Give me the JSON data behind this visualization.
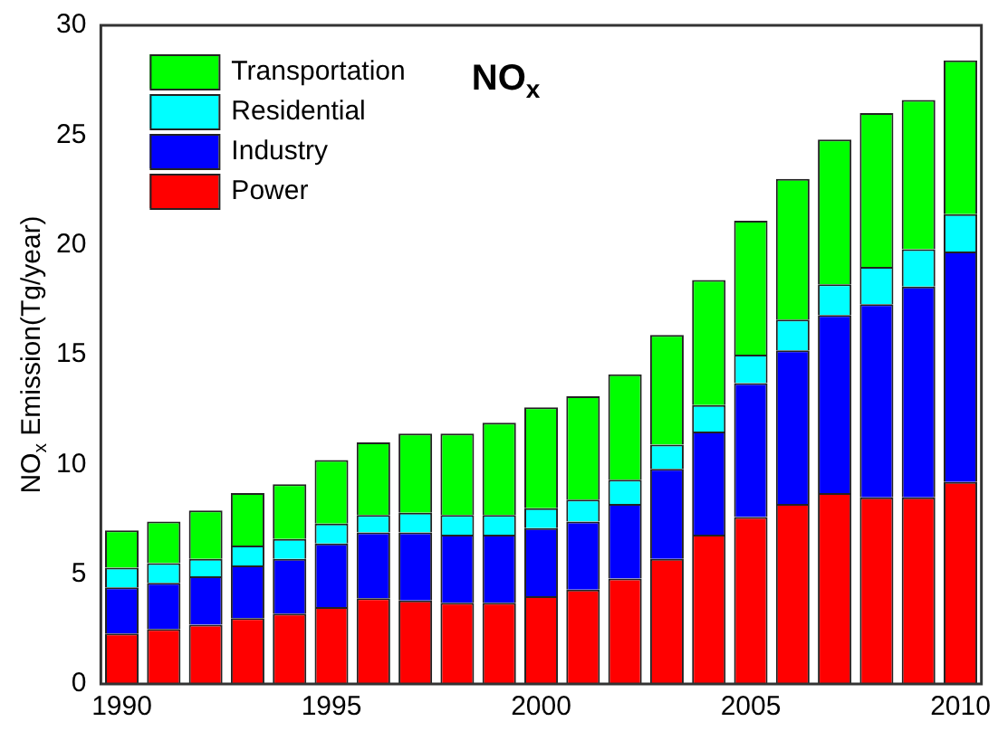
{
  "chart_data": {
    "type": "bar",
    "title": "NO$_{x}$",
    "ylabel": "NO$_{x}$ Emission(Tg/year)",
    "categories": [
      "1990",
      null,
      null,
      null,
      null,
      "1995",
      null,
      null,
      null,
      null,
      "2000",
      null,
      null,
      null,
      null,
      "2005",
      null,
      null,
      null,
      null,
      "2010"
    ],
    "stacked": true,
    "ylim": [
      0,
      30
    ],
    "yticks": [
      0,
      5,
      10,
      15,
      20,
      25,
      30
    ],
    "grid": false,
    "legend": "top left",
    "series": [
      {
        "name": "Power",
        "color": "#ff0000",
        "values": [
          2.3,
          2.5,
          2.7,
          3.0,
          3.2,
          3.5,
          3.9,
          3.8,
          3.7,
          3.7,
          4.0,
          4.3,
          4.8,
          5.7,
          6.8,
          7.6,
          8.2,
          8.7,
          8.5,
          8.5,
          9.2
        ]
      },
      {
        "name": "Industry",
        "color": "#0000ff",
        "values": [
          2.1,
          2.1,
          2.2,
          2.4,
          2.5,
          2.9,
          3.0,
          3.1,
          3.1,
          3.1,
          3.1,
          3.1,
          3.4,
          4.1,
          4.7,
          6.1,
          7.0,
          8.1,
          8.8,
          9.6,
          10.5
        ]
      },
      {
        "name": "Residential",
        "color": "#00ffff",
        "values": [
          0.9,
          0.9,
          0.8,
          0.9,
          0.9,
          0.9,
          0.8,
          0.9,
          0.9,
          0.9,
          0.9,
          1.0,
          1.1,
          1.1,
          1.2,
          1.3,
          1.4,
          1.4,
          1.7,
          1.7,
          1.7
        ]
      },
      {
        "name": "Transportation",
        "color": "#00ff00",
        "values": [
          1.7,
          1.9,
          2.2,
          2.4,
          2.5,
          2.9,
          3.3,
          3.6,
          3.7,
          4.2,
          4.6,
          4.7,
          4.8,
          5.0,
          5.7,
          6.1,
          6.4,
          6.6,
          7.0,
          6.8,
          7.0
        ]
      }
    ]
  }
}
